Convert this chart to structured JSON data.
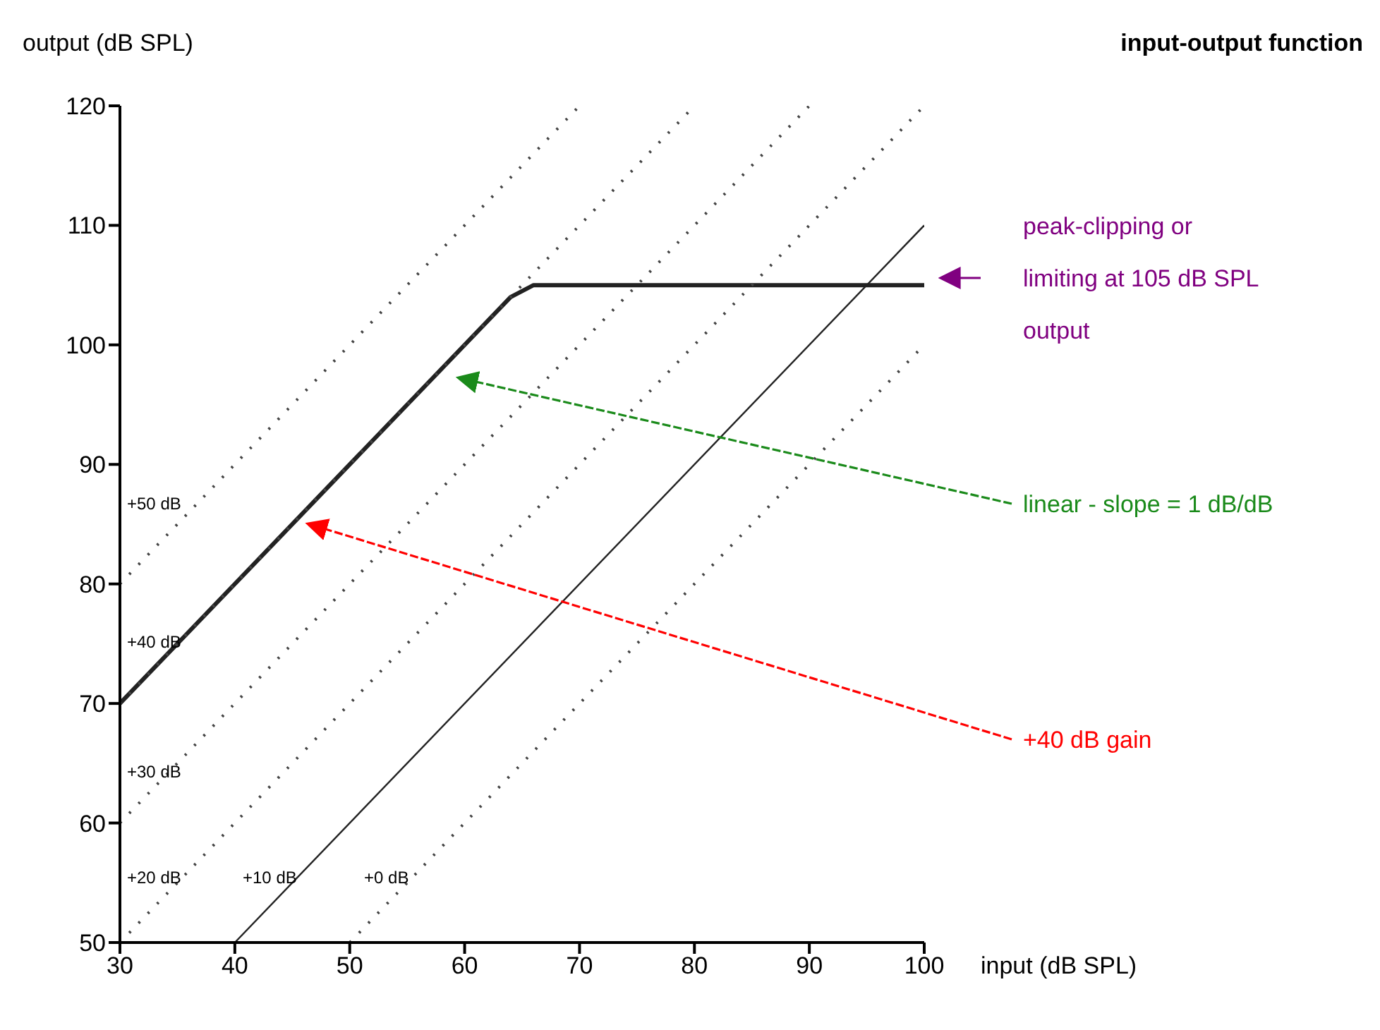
{
  "chart_data": {
    "type": "line",
    "title": "input-output function",
    "xlabel": "input (dB SPL)",
    "ylabel": "output (dB SPL)",
    "xlim": [
      30,
      100
    ],
    "ylim": [
      50,
      120
    ],
    "xticks": [
      30,
      40,
      50,
      60,
      70,
      80,
      90,
      100
    ],
    "yticks": [
      50,
      60,
      70,
      80,
      90,
      100,
      110,
      120
    ],
    "series": [
      {
        "color": "#222222",
        "line_style": "solid",
        "x": [
          30,
          64,
          66,
          100
        ],
        "values": [
          70,
          104,
          105,
          105
        ]
      },
      {
        "color": "#222222",
        "line_style": "solid",
        "x": [
          40,
          100
        ],
        "values": [
          50,
          110
        ]
      },
      {
        "color": "#444444",
        "line_style": "dotted",
        "x": [
          30,
          70
        ],
        "values": [
          80,
          120
        ]
      },
      {
        "color": "#444444",
        "line_style": "dotted",
        "x": [
          30,
          80
        ],
        "values": [
          70,
          120
        ]
      },
      {
        "color": "#444444",
        "line_style": "dotted",
        "x": [
          30,
          90
        ],
        "values": [
          60,
          120
        ]
      },
      {
        "color": "#444444",
        "line_style": "dotted",
        "x": [
          30,
          100
        ],
        "values": [
          50,
          120
        ]
      },
      {
        "color": "#444444",
        "line_style": "dotted",
        "x": [
          50,
          100
        ],
        "values": [
          50,
          100
        ]
      }
    ],
    "annotations": [
      "peak-clipping or limiting at 105 dB SPL output",
      "linear - slope = 1 dB/dB",
      {
        "text": "+40 dB gain",
        "x": 46,
        "y": 85
      },
      "+50 dB",
      "+40 dB",
      "+30 dB",
      "+20 dB",
      "+10 dB",
      "+0 dB"
    ]
  }
}
